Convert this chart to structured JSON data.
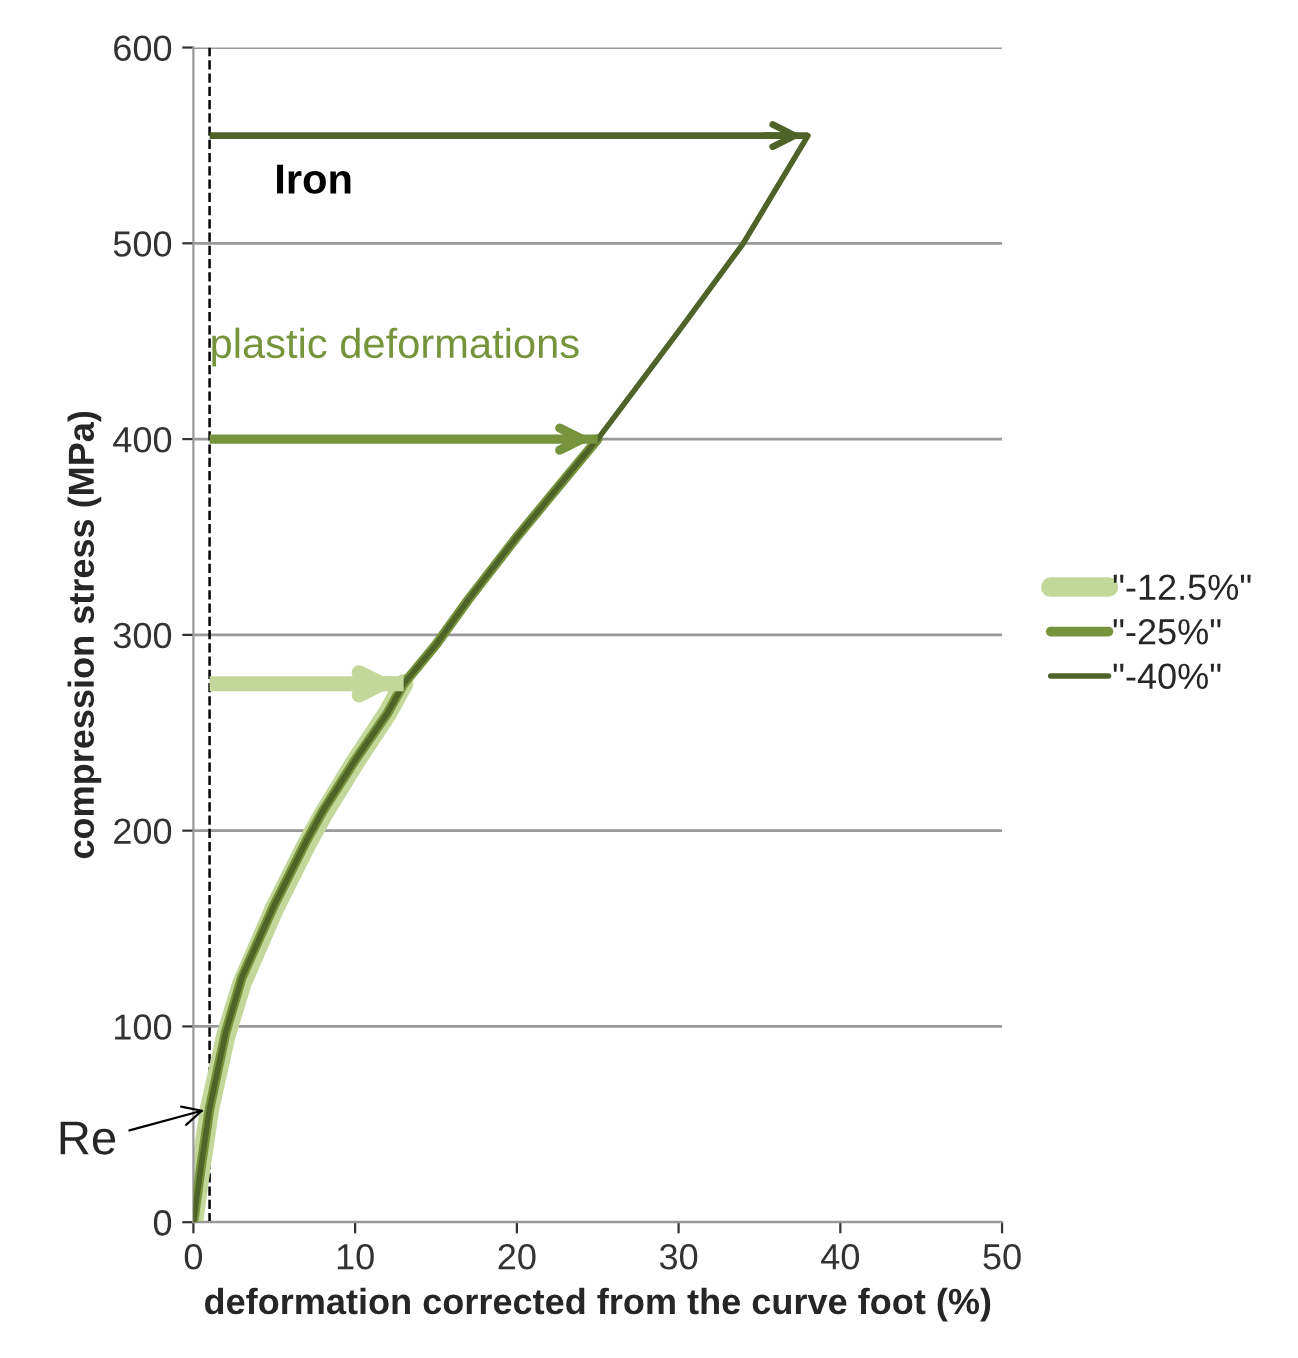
{
  "chart_data": {
    "type": "line",
    "xlabel": "deformation corrected from the curve foot (%)",
    "ylabel": "compression stress (MPa)",
    "xlim": [
      0,
      50
    ],
    "xticks": [
      0,
      10,
      20,
      30,
      40,
      50
    ],
    "ylim": [
      0,
      600
    ],
    "yticks": [
      0,
      100,
      200,
      300,
      400,
      500,
      600
    ],
    "grid": "y",
    "legend": "right",
    "series": [
      {
        "name": "\"-12.5%\"",
        "color": "#c4d79b",
        "x": [
          0,
          0.5,
          1,
          2,
          3,
          5,
          7,
          8,
          10,
          12,
          13
        ],
        "values": [
          0,
          30,
          58,
          95,
          122,
          160,
          193,
          208,
          235,
          260,
          275
        ]
      },
      {
        "name": "\"-25%\"",
        "color": "#77933c",
        "x": [
          0,
          0.5,
          1,
          2,
          3,
          5,
          7,
          8,
          10,
          12,
          13,
          15,
          17,
          20,
          25
        ],
        "values": [
          0,
          30,
          58,
          97,
          125,
          162,
          195,
          210,
          236,
          260,
          275,
          295,
          318,
          350,
          400
        ]
      },
      {
        "name": "\"-40%\"",
        "color": "#4f6228",
        "x": [
          0,
          0.5,
          1,
          2,
          3,
          5,
          7,
          8,
          10,
          12,
          13,
          15,
          17,
          20,
          25,
          30,
          34,
          38
        ],
        "values": [
          0,
          30,
          58,
          97,
          125,
          162,
          195,
          210,
          236,
          260,
          275,
          295,
          318,
          350,
          400,
          455,
          500,
          555
        ]
      },
      {
        "color": "#c4d79b",
        "x": [
          1,
          13
        ],
        "values": [
          275,
          275
        ]
      },
      {
        "color": "#77933c",
        "x": [
          1,
          25
        ],
        "values": [
          400,
          400
        ]
      },
      {
        "color": "#4f6228",
        "x": [
          1,
          38
        ],
        "values": [
          555,
          555
        ]
      }
    ],
    "ref_lines": [
      {
        "axis": "x",
        "value": 1,
        "color": "#000000",
        "line_style": "dashed"
      }
    ],
    "annotations": [
      {
        "text": "Re",
        "x": 1,
        "y": 58
      },
      "Iron",
      "plastic deformations"
    ]
  }
}
